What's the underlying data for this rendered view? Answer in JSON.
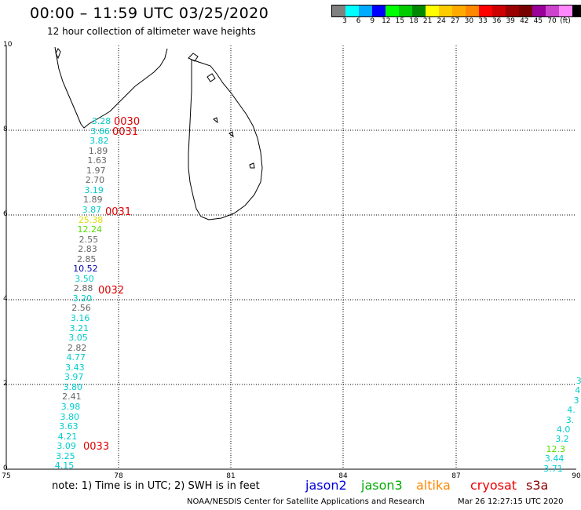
{
  "header": {
    "title": "00:00 – 11:59 UTC 03/25/2020",
    "subtitle": "12 hour collection of altimeter wave heights"
  },
  "color_legend": {
    "swatches": [
      "#808080",
      "#00ffff",
      "#00aaff",
      "#0000ff",
      "#00ff00",
      "#00cc00",
      "#008800",
      "#ffff00",
      "#ffcc00",
      "#ffaa00",
      "#ff8800",
      "#ff0000",
      "#cc0000",
      "#990000",
      "#770000",
      "#990099",
      "#cc44cc",
      "#ff88ff",
      "#000000"
    ],
    "ticks": [
      "3",
      "6",
      "9",
      "12",
      "15",
      "18",
      "21",
      "24",
      "27",
      "30",
      "33",
      "36",
      "39",
      "42",
      "45",
      "70"
    ],
    "unit": "(ft)"
  },
  "axes": {
    "y_labels": [
      "10",
      "8",
      "6",
      "4",
      "2",
      "0"
    ],
    "x_labels": [
      "75",
      "78",
      "81",
      "84",
      "87",
      "90"
    ]
  },
  "measurements": [
    {
      "v": "3.28",
      "c": "#00cccc"
    },
    {
      "v": "3.66",
      "c": "#00cccc"
    },
    {
      "v": "3.82",
      "c": "#00cccc"
    },
    {
      "v": "1.89",
      "c": "#666666"
    },
    {
      "v": "1.63",
      "c": "#666666"
    },
    {
      "v": "1.97",
      "c": "#666666"
    },
    {
      "v": "2.70",
      "c": "#666666"
    },
    {
      "v": "3.19",
      "c": "#00cccc"
    },
    {
      "v": "1.89",
      "c": "#666666"
    },
    {
      "v": "3.87",
      "c": "#00cccc"
    },
    {
      "v": "25.38",
      "c": "#dddd00"
    },
    {
      "v": "12.24",
      "c": "#55dd00"
    },
    {
      "v": "2.55",
      "c": "#666666"
    },
    {
      "v": "2.83",
      "c": "#666666"
    },
    {
      "v": "2.85",
      "c": "#666666"
    },
    {
      "v": "10.52",
      "c": "#0000aa"
    },
    {
      "v": "3.50",
      "c": "#00cccc"
    },
    {
      "v": "2.88",
      "c": "#666666"
    },
    {
      "v": "3.20",
      "c": "#00cccc"
    },
    {
      "v": "2.56",
      "c": "#666666"
    },
    {
      "v": "3.16",
      "c": "#00cccc"
    },
    {
      "v": "3.21",
      "c": "#00cccc"
    },
    {
      "v": "3.05",
      "c": "#00cccc"
    },
    {
      "v": "2.82",
      "c": "#666666"
    },
    {
      "v": "4.77",
      "c": "#00cccc"
    },
    {
      "v": "3.43",
      "c": "#00cccc"
    },
    {
      "v": "3.97",
      "c": "#00cccc"
    },
    {
      "v": "3.80",
      "c": "#00cccc"
    },
    {
      "v": "2.41",
      "c": "#666666"
    },
    {
      "v": "3.98",
      "c": "#00cccc"
    },
    {
      "v": "3.80",
      "c": "#00cccc"
    },
    {
      "v": "3.63",
      "c": "#00cccc"
    },
    {
      "v": "4.21",
      "c": "#00cccc"
    },
    {
      "v": "3.09",
      "c": "#00cccc"
    },
    {
      "v": "3.25",
      "c": "#00cccc"
    },
    {
      "v": "4.15",
      "c": "#00cccc"
    }
  ],
  "measurements_right": [
    {
      "v": "3",
      "c": "#00cccc"
    },
    {
      "v": "4",
      "c": "#00cccc"
    },
    {
      "v": "3",
      "c": "#00cccc"
    },
    {
      "v": "4.",
      "c": "#00cccc"
    },
    {
      "v": "3.",
      "c": "#00cccc"
    },
    {
      "v": "4.0",
      "c": "#00cccc"
    },
    {
      "v": "3.2",
      "c": "#00cccc"
    },
    {
      "v": "12.3",
      "c": "#55dd00"
    },
    {
      "v": "3.44",
      "c": "#00cccc"
    },
    {
      "v": "3.71",
      "c": "#00cccc"
    }
  ],
  "time_labels": [
    "0030",
    "0031",
    "0031",
    "0032",
    "0033"
  ],
  "footer": {
    "note": "note:  1) Time is in UTC;  2) SWH is in feet",
    "satellites": [
      {
        "name": "jason2",
        "color": "#0000dd"
      },
      {
        "name": "jason3",
        "color": "#00aa00"
      },
      {
        "name": "altika",
        "color": "#ff8800"
      },
      {
        "name": "cryosat",
        "color": "#ee0000"
      },
      {
        "name": "s3a",
        "color": "#880000"
      }
    ],
    "credit": "NOAA/NESDIS Center for Satellite Applications and Research",
    "timestamp": "Mar 26 12:27:15 UTC 2020"
  }
}
